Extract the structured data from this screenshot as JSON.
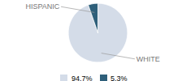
{
  "chart_data": {
    "type": "pie",
    "categories": [
      "WHITE",
      "HISPANIC"
    ],
    "values": [
      94.7,
      5.3
    ],
    "value_labels": [
      "94.7%",
      "5.3%"
    ],
    "colors": [
      "#d4dce8",
      "#2e5f7a"
    ],
    "legend": "bottom"
  }
}
